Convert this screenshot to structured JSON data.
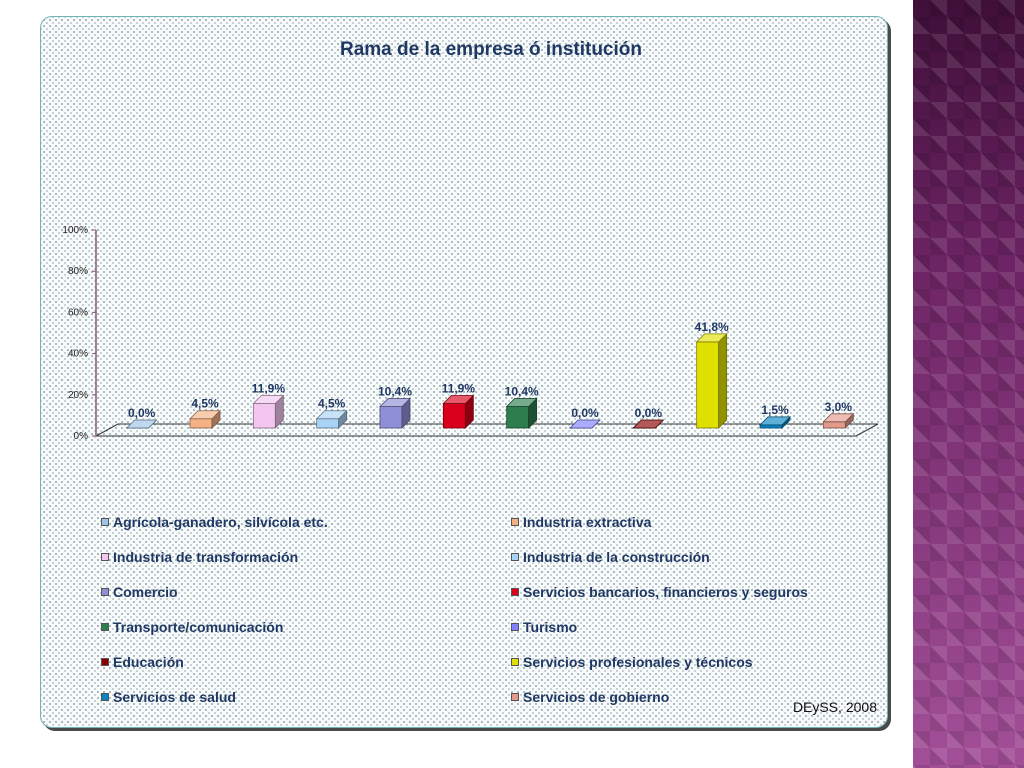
{
  "chart_data": {
    "type": "bar",
    "title": "Rama de la empresa ó institución",
    "categories": [
      "Agrícola-ganadero, silvícola etc.",
      "Industria extractiva",
      "Industria de transformación",
      "Industria de la construcción",
      "Comercio",
      "Servicios bancarios, financieros y seguros",
      "Transporte/comunicación",
      "Turismo",
      "Educación",
      "Servicios profesionales y técnicos",
      "Servicios de salud",
      "Servicios de gobierno"
    ],
    "values": [
      0.0,
      4.5,
      11.9,
      4.5,
      10.4,
      11.9,
      10.4,
      0.0,
      0.0,
      41.8,
      1.5,
      3.0
    ],
    "data_labels": [
      "0,0%",
      "4,5%",
      "11,9%",
      "4,5%",
      "10,4%",
      "11,9%",
      "10,4%",
      "0,0%",
      "0,0%",
      "41,8%",
      "1,5%",
      "3,0%"
    ],
    "colors": [
      "#9dc3e6",
      "#f4b183",
      "#f3c6f0",
      "#a9d3f5",
      "#8f8fd8",
      "#d9001b",
      "#2e7d4f",
      "#7f7fff",
      "#8b0000",
      "#e0e000",
      "#0b84c4",
      "#e39a8a"
    ],
    "yticks": [
      "0%",
      "20%",
      "40%",
      "60%",
      "80%",
      "100%"
    ],
    "ylim": [
      0,
      100
    ],
    "xlabel": "",
    "ylabel": "",
    "legend_position": "bottom",
    "grid": false
  },
  "credit": "DEySS, 2008"
}
